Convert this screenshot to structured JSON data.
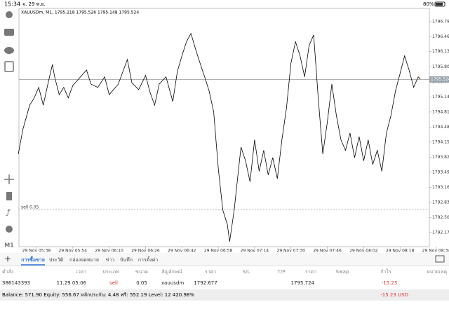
{
  "status_bar": {
    "time": "15:34",
    "date": "จ. 29 พ.ย.",
    "battery": "80%"
  },
  "toolbar": {
    "timeframe": "M1"
  },
  "chart_data": {
    "type": "line",
    "title": "XAUUSDm, M1, 1795.218 1795.526 1795.148 1795.524",
    "color": "#000000",
    "x": [
      "29 Nov 05:30",
      "29 Nov 05:32",
      "29 Nov 05:35",
      "29 Nov 05:37",
      "29 Nov 05:39",
      "29 Nov 05:41",
      "29 Nov 05:43",
      "29 Nov 05:45",
      "29 Nov 05:46",
      "29 Nov 05:48",
      "29 Nov 05:50",
      "29 Nov 05:52",
      "29 Nov 05:54",
      "29 Nov 06:00",
      "29 Nov 06:02",
      "29 Nov 06:05",
      "29 Nov 06:08",
      "29 Nov 06:10",
      "29 Nov 06:14",
      "29 Nov 06:18",
      "29 Nov 06:20",
      "29 Nov 06:23",
      "29 Nov 06:26",
      "29 Nov 06:28",
      "29 Nov 06:30",
      "29 Nov 06:32",
      "29 Nov 06:35",
      "29 Nov 06:38",
      "29 Nov 06:40",
      "29 Nov 06:42",
      "29 Nov 06:44",
      "29 Nov 06:46",
      "29 Nov 06:48",
      "29 Nov 06:50",
      "29 Nov 06:52",
      "29 Nov 06:54",
      "29 Nov 06:56",
      "29 Nov 06:58",
      "29 Nov 07:00",
      "29 Nov 07:02",
      "29 Nov 07:03",
      "29 Nov 07:05",
      "29 Nov 07:07",
      "29 Nov 07:08",
      "29 Nov 07:10",
      "29 Nov 07:12",
      "29 Nov 07:14",
      "29 Nov 07:16",
      "29 Nov 07:18",
      "29 Nov 07:20",
      "29 Nov 07:22",
      "29 Nov 07:24",
      "29 Nov 07:26",
      "29 Nov 07:28",
      "29 Nov 07:30",
      "29 Nov 07:32",
      "29 Nov 07:34",
      "29 Nov 07:36",
      "29 Nov 07:38",
      "29 Nov 07:40",
      "29 Nov 07:42",
      "29 Nov 07:44",
      "29 Nov 07:46",
      "29 Nov 07:48",
      "29 Nov 07:50",
      "29 Nov 07:52",
      "29 Nov 07:54",
      "29 Nov 07:56",
      "29 Nov 07:58",
      "29 Nov 08:00",
      "29 Nov 08:02",
      "29 Nov 08:04",
      "29 Nov 08:06",
      "29 Nov 08:08",
      "29 Nov 08:10",
      "29 Nov 08:12",
      "29 Nov 08:14",
      "29 Nov 08:16",
      "29 Nov 08:18",
      "29 Nov 08:20",
      "29 Nov 08:22",
      "29 Nov 08:24",
      "29 Nov 08:26",
      "29 Nov 08:27"
    ],
    "values": [
      1793.89,
      1794.43,
      1794.96,
      1795.12,
      1795.35,
      1794.96,
      1795.42,
      1795.85,
      1795.58,
      1795.19,
      1795.35,
      1795.12,
      1795.39,
      1795.73,
      1795.42,
      1795.35,
      1795.58,
      1795.19,
      1795.42,
      1795.96,
      1795.45,
      1795.3,
      1795.61,
      1795.24,
      1794.96,
      1795.42,
      1795.58,
      1795.04,
      1795.7,
      1796.04,
      1796.35,
      1796.53,
      1796.19,
      1795.88,
      1795.58,
      1795.27,
      1794.81,
      1793.58,
      1792.66,
      1792.35,
      1791.97,
      1792.66,
      1793.58,
      1794.04,
      1793.74,
      1793.28,
      1794.2,
      1793.51,
      1793.97,
      1793.43,
      1793.81,
      1793.35,
      1794.2,
      1794.89,
      1795.88,
      1796.35,
      1796.04,
      1795.58,
      1796.27,
      1796.5,
      1795.12,
      1793.89,
      1794.58,
      1795.42,
      1794.73,
      1794.2,
      1793.97,
      1794.35,
      1793.81,
      1794.27,
      1793.74,
      1794.2,
      1793.66,
      1793.97,
      1793.51,
      1794.35,
      1794.73,
      1795.27,
      1795.65,
      1796.04,
      1795.73,
      1795.35,
      1795.58,
      1795.53
    ],
    "ylim": [
      1791.86,
      1797.08
    ],
    "yticks": [
      {
        "value": 1796.79,
        "label": "1796.790"
      },
      {
        "value": 1796.46,
        "label": "1796.460"
      },
      1796.135,
      {
        "value": 1795.8,
        "label": "1795.800"
      },
      {
        "value": 1795.47,
        "label": "1795.470"
      },
      {
        "value": 1795.14,
        "label": "1795.140"
      },
      {
        "value": 1794.81,
        "label": "1794.810"
      },
      {
        "value": 1794.48,
        "label": "1794.480"
      },
      {
        "value": 1794.15,
        "label": "1794.150"
      },
      {
        "value": 1793.82,
        "label": "1793.820"
      },
      {
        "value": 1793.49,
        "label": "1793.490"
      },
      {
        "value": 1793.16,
        "label": "1793.160"
      },
      {
        "value": 1792.83,
        "label": "1792.830"
      },
      {
        "value": 1792.5,
        "label": "1792.500"
      },
      {
        "value": 1792.17,
        "label": "1792.170"
      }
    ],
    "xticks": [
      "29 Nov 05:38",
      "29 Nov 05:54",
      "29 Nov 06:10",
      "29 Nov 06:26",
      "29 Nov 06:42",
      "29 Nov 06:58",
      "29 Nov 07:14",
      "29 Nov 07:30",
      "29 Nov 07:46",
      "29 Nov 08:02",
      "29 Nov 08:18",
      "29 Nov 08:34"
    ],
    "current_price": 1795.524,
    "order_label": "sell 0.05"
  },
  "tabs": [
    "การซื้อขาย",
    "ประวัติ",
    "กล่องจดหมาย",
    "ข่าว",
    "บันทึก",
    "การตั้งค่า"
  ],
  "table": {
    "columns": [
      "คำสั่ง",
      "เวลา",
      "ประเภท",
      "ขนาด",
      "สัญลักษณ์",
      "ราคา",
      "S/L",
      "T/P",
      "ราคา",
      "Swap",
      "กำไร",
      "หมายเหตุ"
    ],
    "rows": [
      {
        "order": "386143393",
        "time": "11.29 05:06",
        "type": "sell",
        "volume": "0.05",
        "symbol": "xauusdm",
        "open_price": 1792.677,
        "price": 1795.724,
        "profit": -15.23
      }
    ]
  },
  "footer": {
    "summary": "Balance: 571.90 Equity: 556.67 หลักประกัน: 4.48 ฟรี: 552.19 Level: 12 420.98%",
    "total": "-15.23  USD"
  }
}
